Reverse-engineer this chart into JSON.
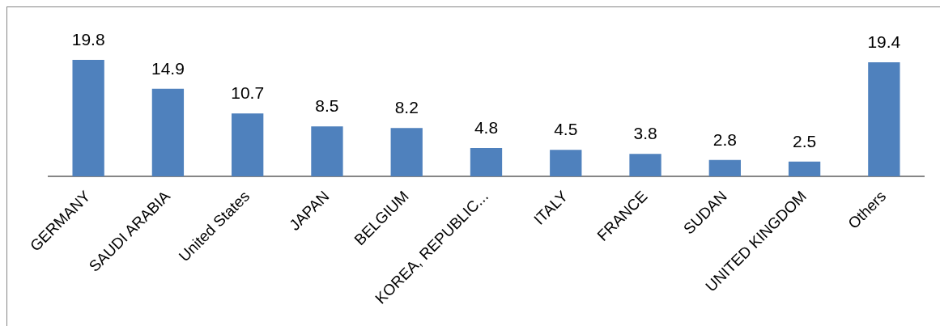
{
  "chart_data": {
    "type": "bar",
    "categories": [
      "GERMANY",
      "SAUDI ARABIA",
      "United States",
      "JAPAN",
      "BELGIUM",
      "KOREA, REPUBLIC...",
      "ITALY",
      "FRANCE",
      "SUDAN",
      "UNITED KINGDOM",
      "Others"
    ],
    "values": [
      19.8,
      14.9,
      10.7,
      8.5,
      8.2,
      4.8,
      4.5,
      3.8,
      2.8,
      2.5,
      19.4
    ],
    "color": "#4f81bd",
    "data_labels": true,
    "tick_labels": "x"
  }
}
